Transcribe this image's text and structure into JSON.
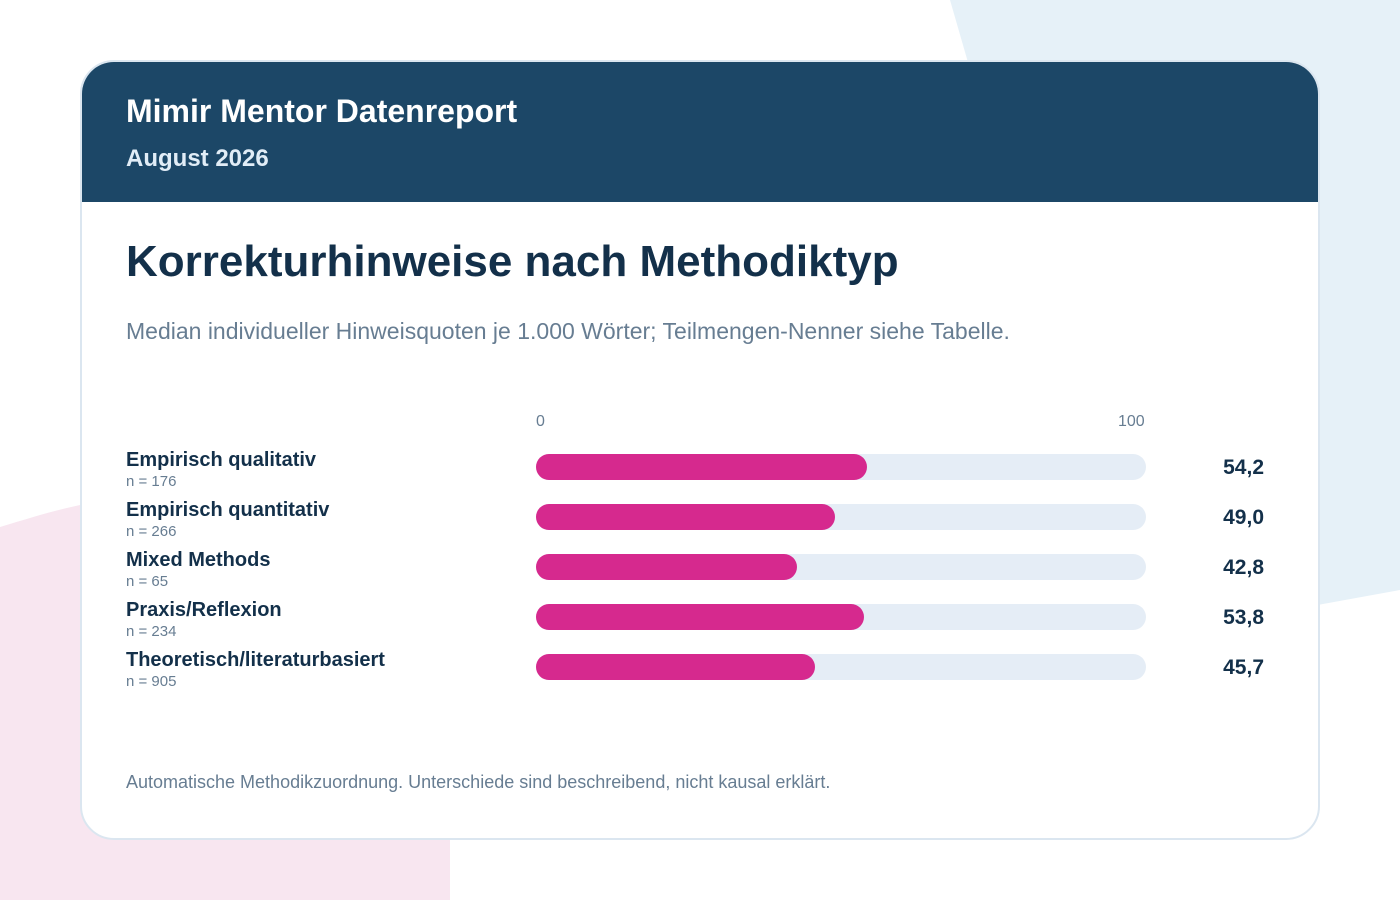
{
  "report": {
    "brand": "Mimir Mentor Datenreport",
    "period": "August 2026"
  },
  "chart_data": {
    "type": "bar",
    "orientation": "horizontal",
    "title": "Korrekturhinweise nach Methodiktyp",
    "subtitle": "Median individueller Hinweisquoten je 1.000 Wörter; Teilmengen-Nenner siehe Tabelle.",
    "axis": {
      "min_label": "0",
      "max_label": "100"
    },
    "xlim": [
      0,
      100
    ],
    "categories": [
      "Empirisch qualitativ",
      "Empirisch quantitativ",
      "Mixed Methods",
      "Praxis/Reflexion",
      "Theoretisch/literaturbasiert"
    ],
    "n_labels": [
      "n = 176",
      "n = 266",
      "n = 65",
      "n = 234",
      "n = 905"
    ],
    "values": [
      54.2,
      49.0,
      42.8,
      53.8,
      45.7
    ],
    "value_labels": [
      "54,2",
      "49,0",
      "42,8",
      "53,8",
      "45,7"
    ],
    "bar_color": "#d6298e",
    "track_color": "#e5edf6"
  },
  "footnote": "Automatische Methodikzuordnung. Unterschiede sind beschreibend, nicht kausal erklärt."
}
